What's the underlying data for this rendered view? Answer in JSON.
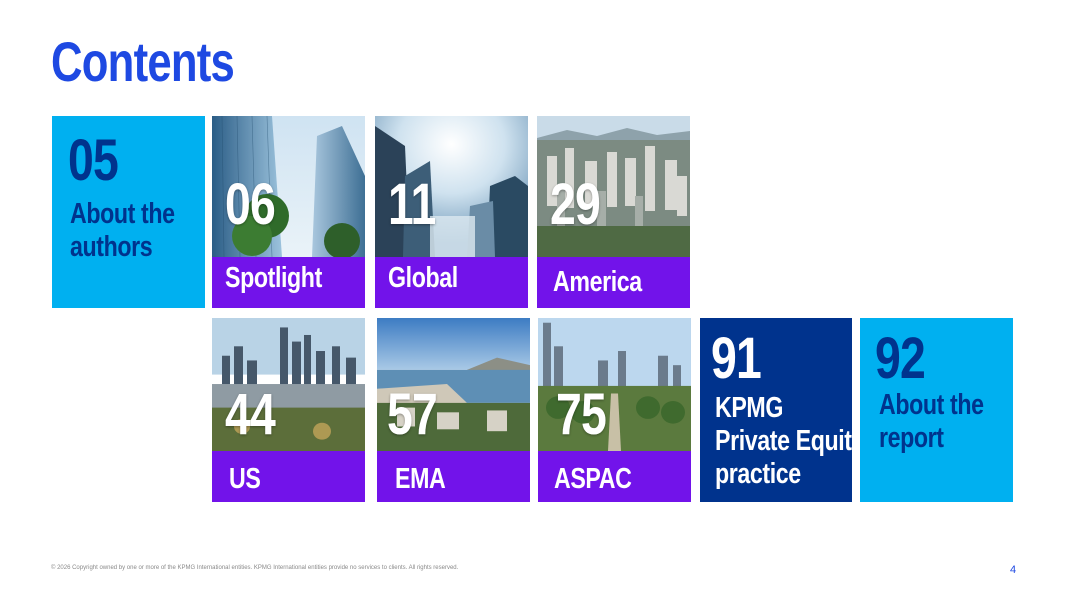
{
  "page": {
    "title": "Contents",
    "footer": "© 2026 Copyright owned by one or more of the KPMG International entities. KPMG International entities provide no services to clients. All rights reserved.",
    "page_number": "4"
  },
  "colors": {
    "light_blue": "#00B0F0",
    "dark_blue": "#0C233C",
    "kpmg_blue": "#1E49E2",
    "purple": "#7213EA",
    "navy": "#00338D"
  },
  "tiles": [
    {
      "number": "05",
      "label_lines": [
        "About the",
        "authors"
      ]
    },
    {
      "number": "06",
      "label": "Spotlight",
      "image": "skyscrapers-photo"
    },
    {
      "number": "11",
      "label": "Global",
      "image": "misty-towers-photo"
    },
    {
      "number": "29",
      "label": "America",
      "image": "city-aerial-photo"
    },
    {
      "number": "44",
      "label": "US",
      "image": "chicago-skyline-photo"
    },
    {
      "number": "57",
      "label": "EMA",
      "image": "harbour-city-photo"
    },
    {
      "number": "75",
      "label": "ASPAC",
      "image": "park-skyline-photo"
    },
    {
      "number": "91",
      "label_lines": [
        "KPMG",
        "Private Equity",
        "practice"
      ]
    },
    {
      "number": "92",
      "label_lines": [
        "About the",
        "report"
      ]
    }
  ]
}
